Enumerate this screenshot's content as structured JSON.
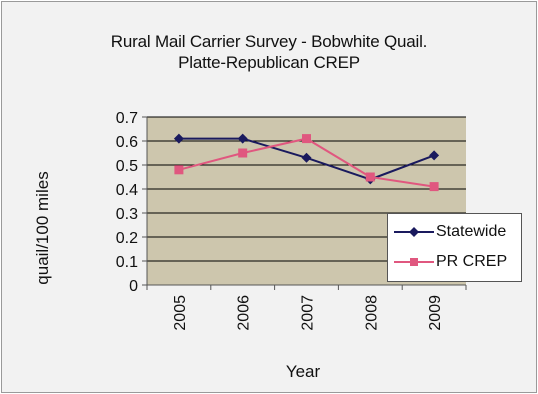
{
  "chart_data": {
    "type": "line",
    "title": "Rural Mail Carrier Survey - Bobwhite Quail.",
    "subtitle": "Platte-Republican CREP",
    "xlabel": "Year",
    "ylabel": "quail/100 miles",
    "categories": [
      "2005",
      "2006",
      "2007",
      "2008",
      "2009"
    ],
    "ylim": [
      0,
      0.7
    ],
    "yticks": [
      "0",
      "0.1",
      "0.2",
      "0.3",
      "0.4",
      "0.5",
      "0.6",
      "0.7"
    ],
    "grid": true,
    "legend_position": "right",
    "plot_background": "#cdc6ad",
    "series": [
      {
        "name": "Statewide",
        "values": [
          0.61,
          0.61,
          0.53,
          0.44,
          0.54
        ],
        "color": "#1a1a5e",
        "marker": "diamond"
      },
      {
        "name": "PR CREP",
        "values": [
          0.48,
          0.55,
          0.61,
          0.45,
          0.41
        ],
        "color": "#e0577f",
        "marker": "square"
      }
    ]
  }
}
